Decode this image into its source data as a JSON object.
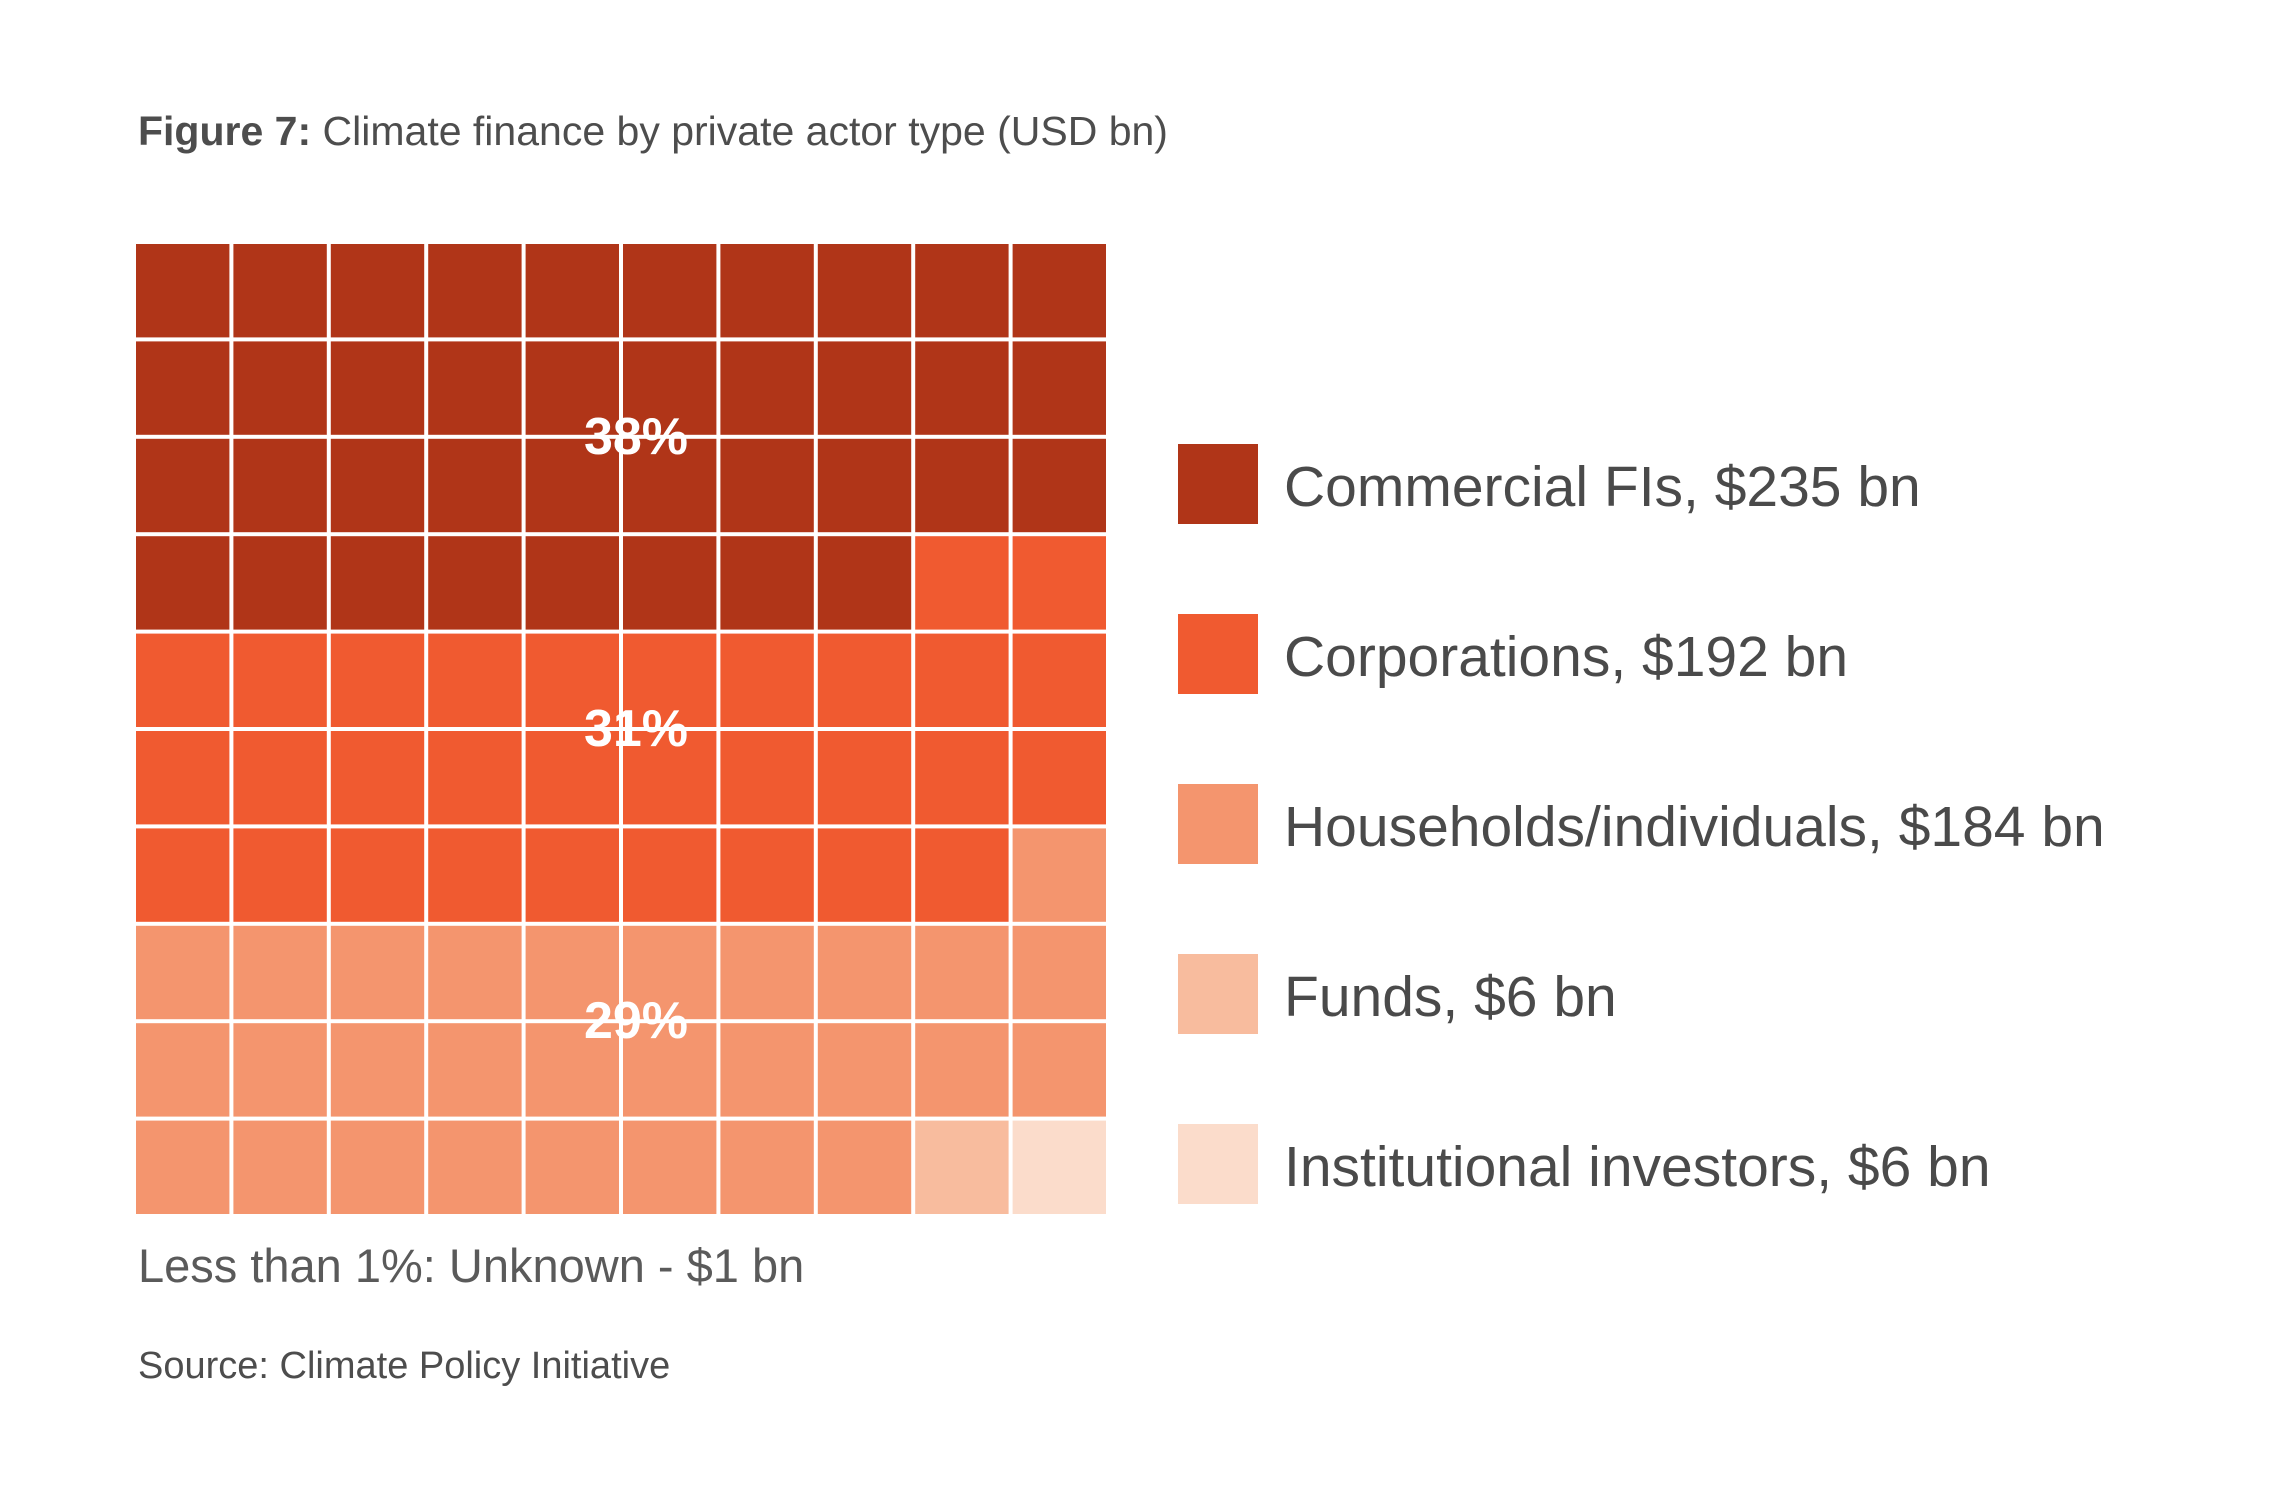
{
  "figure": {
    "title_prefix": "Figure 7:",
    "title": "Climate finance by private actor type (USD bn)",
    "note": "Less than 1%: Unknown - $1 bn",
    "source": "Source: Climate Policy Initiative"
  },
  "colors": {
    "commercial_fis": "#b03518",
    "corporations": "#f05a30",
    "households": "#f4956e",
    "funds": "#f8bc9e",
    "institutional": "#fbdccb",
    "gridline": "#ffffff",
    "text": "#4a4a4a"
  },
  "chart_data": {
    "type": "waffle",
    "grid": {
      "rows": 10,
      "cols": 10
    },
    "series": [
      {
        "name": "Commercial FIs",
        "label": "Commercial FIs, $235 bn",
        "value_bn": 235,
        "cells": 38,
        "percent_label": "38%",
        "color": "#b03518"
      },
      {
        "name": "Corporations",
        "label": "Corporations, $192 bn",
        "value_bn": 192,
        "cells": 31,
        "percent_label": "31%",
        "color": "#f05a30"
      },
      {
        "name": "Households/individuals",
        "label": "Households/individuals, $184 bn",
        "value_bn": 184,
        "cells": 29,
        "percent_label": "29%",
        "color": "#f4956e"
      },
      {
        "name": "Funds",
        "label": "Funds, $6 bn",
        "value_bn": 6,
        "cells": 1,
        "percent_label": "",
        "color": "#f8bc9e"
      },
      {
        "name": "Institutional investors",
        "label": "Institutional investors, $6 bn",
        "value_bn": 6,
        "cells": 1,
        "percent_label": "",
        "color": "#fbdccb"
      }
    ],
    "legend_position": "right"
  }
}
